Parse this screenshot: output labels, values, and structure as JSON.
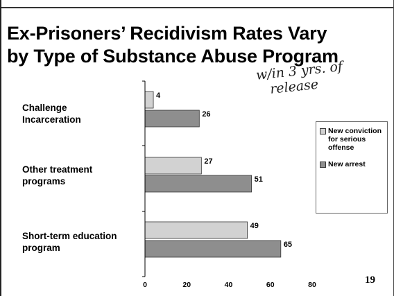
{
  "slide": {
    "title_lines": [
      "Ex-Prisoners’ Recidivism Rates Vary",
      "by Type of Substance Abuse Program"
    ],
    "handwritten_note_lines": [
      "w/in 3 yrs. of",
      "release"
    ],
    "page_number": "19"
  },
  "colors": {
    "new_conviction": "#d2d2d2",
    "new_arrest": "#8e8e8e",
    "axis": "#000000"
  },
  "chart_data": {
    "type": "bar",
    "orientation": "horizontal",
    "categories": [
      [
        "Challenge",
        "Incarceration"
      ],
      [
        "Other treatment",
        "programs"
      ],
      [
        "Short-term education",
        "program"
      ]
    ],
    "series": [
      {
        "name": "New conviction for serious offense",
        "legend_lines": [
          "New conviction",
          "for serious",
          "offense"
        ],
        "values": [
          4,
          27,
          49
        ]
      },
      {
        "name": "New arrest",
        "legend_lines": [
          "New arrest"
        ],
        "values": [
          26,
          51,
          65
        ]
      }
    ],
    "xlim": [
      0,
      80
    ],
    "xticks": [
      "0",
      "20",
      "40",
      "60",
      "80"
    ],
    "title": "Ex-Prisoners’ Recidivism Rates Vary by Type of Substance Abuse Program",
    "xlabel": "",
    "ylabel": "",
    "grid": false,
    "legend_position": "right"
  }
}
